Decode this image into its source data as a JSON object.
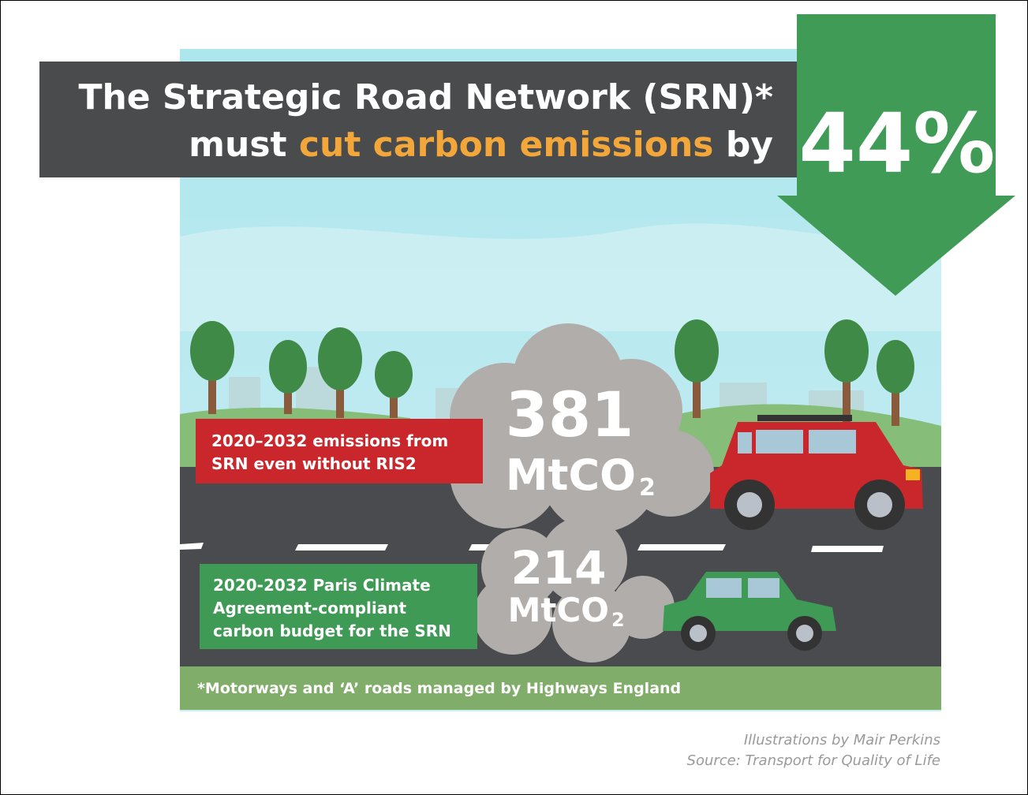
{
  "header": {
    "line1": "The Strategic Road Network (SRN)*",
    "line2_start": "must",
    "line2_highlight": "cut carbon emissions",
    "line2_end": "by",
    "percent": "44%"
  },
  "current": {
    "value": "381",
    "unit": "MtCO",
    "subscript": "2",
    "label_lines": [
      "2020–2032 emissions from",
      "SRN even without RIS2"
    ]
  },
  "budget": {
    "value": "214",
    "unit": "MtCO",
    "subscript": "2",
    "label_lines": [
      "2020-2032 Paris Climate",
      "Agreement-compliant",
      "carbon budget for the SRN"
    ]
  },
  "footnote": "*Motorways and ‘A’ roads managed by Highways England",
  "credits": [
    "Illustrations by Mair Perkins",
    "Source: Transport for Quality of Life"
  ]
}
